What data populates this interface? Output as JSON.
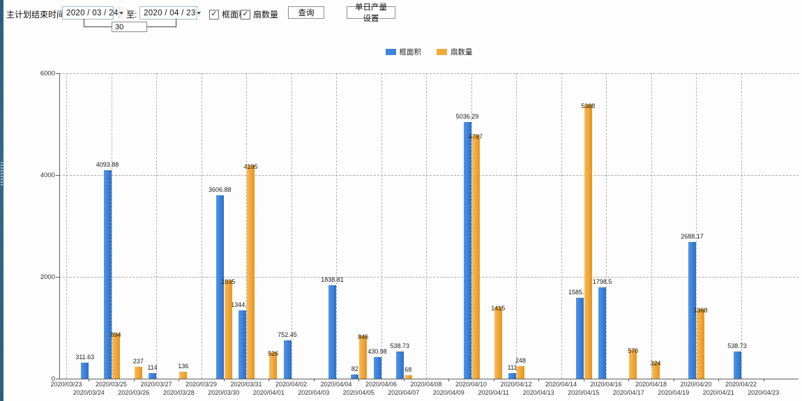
{
  "toolbar": {
    "label_plan_end": "主计划结束时间:",
    "date_from": "2020 / 03 / 24",
    "label_to": "至:",
    "date_to": "2020 / 04 / 23",
    "days_between": "30",
    "checkbox_frame_area": "框面积",
    "checkbox_frame_area_checked": "✓",
    "checkbox_sash_count": "扇数量",
    "checkbox_sash_count_checked": "✓",
    "query_button": "查询",
    "daily_output_button": "单日产量设置"
  },
  "legend": [
    {
      "label": "框面积",
      "color": "#3f85dc"
    },
    {
      "label": "扇数量",
      "color": "#f2a93c"
    }
  ],
  "chart_data": {
    "type": "bar",
    "title": "",
    "xlabel": "",
    "ylabel": "",
    "ylim": [
      0,
      6000
    ],
    "yticks": [
      0,
      2000,
      4000,
      6000
    ],
    "grid": true,
    "legend_position": "top",
    "categories": [
      "2020/03/23",
      "2020/03/24",
      "2020/03/25",
      "2020/03/26",
      "2020/03/27",
      "2020/03/28",
      "2020/03/29",
      "2020/03/30",
      "2020/03/31",
      "2020/04/01",
      "2020/04/02",
      "2020/04/03",
      "2020/04/04",
      "2020/04/05",
      "2020/04/06",
      "2020/04/07",
      "2020/04/08",
      "2020/04/09",
      "2020/04/10",
      "2020/04/11",
      "2020/04/12",
      "2020/04/13",
      "2020/04/14",
      "2020/04/15",
      "2020/04/16",
      "2020/04/17",
      "2020/04/18",
      "2020/04/19",
      "2020/04/20",
      "2020/04/21",
      "2020/04/22",
      "2020/04/23"
    ],
    "series": [
      {
        "name": "框面积",
        "color": "#3f85dc",
        "values": [
          null,
          311.63,
          4093.88,
          null,
          114,
          null,
          null,
          3606.88,
          1344.95,
          null,
          752.45,
          null,
          1838.81,
          82,
          430.98,
          538.73,
          null,
          null,
          5036.29,
          null,
          111,
          null,
          null,
          1585.96,
          1798.5,
          null,
          null,
          null,
          2688.17,
          null,
          538.73,
          null
        ]
      },
      {
        "name": "扇数量",
        "color": "#f2a93c",
        "values": [
          null,
          null,
          894,
          237,
          null,
          136,
          null,
          1935,
          4195,
          526,
          null,
          null,
          null,
          846,
          null,
          68,
          null,
          null,
          4787,
          1415,
          248,
          null,
          null,
          5388,
          null,
          570,
          324,
          null,
          1368,
          null,
          null,
          null
        ]
      }
    ]
  }
}
